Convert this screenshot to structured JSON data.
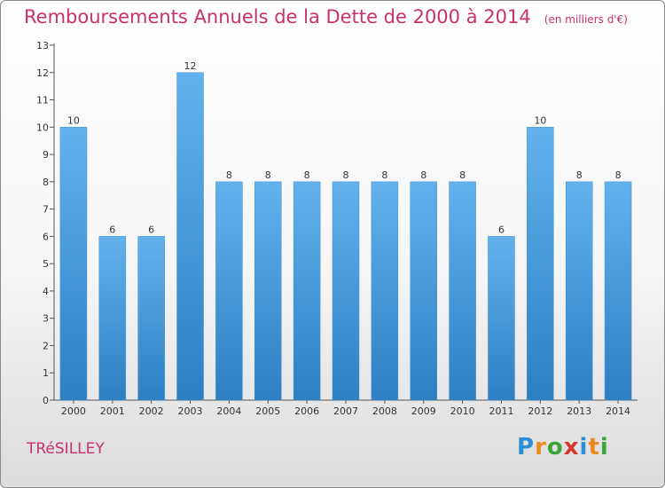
{
  "header": {
    "title": "Remboursements Annuels de la Dette de 2000 à 2014",
    "unit": "(en milliers d'€)"
  },
  "footer": {
    "town": "TRéSILLEY",
    "brand_letters": [
      "P",
      "r",
      "o",
      "x",
      "i",
      "t",
      "i"
    ],
    "brand_colors": [
      "#2a8fd6",
      "#e98b1d",
      "#3ba53b",
      "#d53a2f",
      "#2a8fd6",
      "#e98b1d",
      "#3ba53b"
    ]
  },
  "colors": {
    "title": "#c8306f",
    "bar": "#4a9fe2",
    "bar_light": "#6fb8f0",
    "bar_dark": "#2b7fc4",
    "axis": "#555555"
  },
  "chart_data": {
    "type": "bar",
    "title": "Remboursements Annuels de la Dette de 2000 à 2014",
    "subtitle": "(en milliers d'€)",
    "categories": [
      "2000",
      "2001",
      "2002",
      "2003",
      "2004",
      "2005",
      "2006",
      "2007",
      "2008",
      "2009",
      "2010",
      "2011",
      "2012",
      "2013",
      "2014"
    ],
    "values": [
      10,
      6,
      6,
      12,
      8,
      8,
      8,
      8,
      8,
      8,
      8,
      6,
      10,
      8,
      8
    ],
    "data_labels": [
      "10",
      "6",
      "6",
      "12",
      "8",
      "8",
      "8",
      "8",
      "8",
      "8",
      "8",
      "6",
      "10",
      "8",
      "8"
    ],
    "ylim": [
      0,
      13
    ],
    "yticks": [
      "0",
      "1",
      "2",
      "3",
      "4",
      "5",
      "6",
      "7",
      "8",
      "9",
      "10",
      "11",
      "12",
      "13"
    ],
    "grid": false,
    "legend": "none"
  }
}
